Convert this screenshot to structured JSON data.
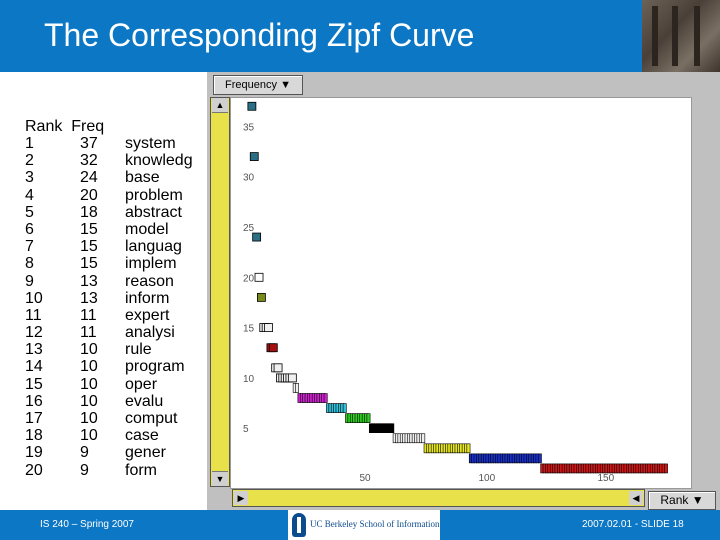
{
  "title": "The Corresponding Zipf Curve",
  "table": {
    "headers": [
      "Rank",
      "Freq"
    ],
    "rows": [
      {
        "rank": "1",
        "freq": "37",
        "term": "system"
      },
      {
        "rank": "2",
        "freq": "32",
        "term": "knowledg"
      },
      {
        "rank": "3",
        "freq": "24",
        "term": "base"
      },
      {
        "rank": "4",
        "freq": "20",
        "term": "problem"
      },
      {
        "rank": "5",
        "freq": "18",
        "term": "abstract"
      },
      {
        "rank": "6",
        "freq": "15",
        "term": "model"
      },
      {
        "rank": "7",
        "freq": "15",
        "term": "languag"
      },
      {
        "rank": "8",
        "freq": "15",
        "term": "implem"
      },
      {
        "rank": "9",
        "freq": "13",
        "term": "reason"
      },
      {
        "rank": "10",
        "freq": "13",
        "term": "inform"
      },
      {
        "rank": "11",
        "freq": "11",
        "term": "expert"
      },
      {
        "rank": "12",
        "freq": "11",
        "term": "analysi"
      },
      {
        "rank": "13",
        "freq": "10",
        "term": "rule"
      },
      {
        "rank": "14",
        "freq": "10",
        "term": "program"
      },
      {
        "rank": "15",
        "freq": "10",
        "term": "oper"
      },
      {
        "rank": "16",
        "freq": "10",
        "term": "evalu"
      },
      {
        "rank": "17",
        "freq": "10",
        "term": "comput"
      },
      {
        "rank": "18",
        "freq": "10",
        "term": "case"
      },
      {
        "rank": "19",
        "freq": "9",
        "term": "gener"
      },
      {
        "rank": "20",
        "freq": "9",
        "term": "form"
      }
    ]
  },
  "controls": {
    "y_axis_selector": "Frequency",
    "x_axis_selector": "Rank",
    "dropdown_glyph": "▼",
    "scroll_left_glyph": "◀",
    "scroll_right_glyph": "▶",
    "scroll_up_glyph": "▲",
    "scroll_down_glyph": "▼"
  },
  "chart_data": {
    "type": "scatter",
    "x_ticks": [
      "50",
      "100",
      "150"
    ],
    "y_ticks": [
      "5",
      "10",
      "15",
      "20",
      "25",
      "30",
      "35"
    ],
    "xlim": [
      0,
      180
    ],
    "ylim": [
      1,
      38
    ],
    "grid": false,
    "points": [
      {
        "x": 1,
        "y": 37
      },
      {
        "x": 2,
        "y": 32
      },
      {
        "x": 3,
        "y": 24
      },
      {
        "x": 4,
        "y": 20
      },
      {
        "x": 5,
        "y": 18
      },
      {
        "x": 6,
        "y": 15
      },
      {
        "x": 7,
        "y": 15
      },
      {
        "x": 8,
        "y": 15
      },
      {
        "x": 9,
        "y": 13
      },
      {
        "x": 10,
        "y": 13
      },
      {
        "x": 11,
        "y": 11
      },
      {
        "x": 12,
        "y": 11
      },
      {
        "x": 13,
        "y": 10
      },
      {
        "x": 14,
        "y": 10
      },
      {
        "x": 15,
        "y": 10
      },
      {
        "x": 16,
        "y": 10
      },
      {
        "x": 17,
        "y": 10
      },
      {
        "x": 18,
        "y": 10
      }
    ],
    "runs": [
      {
        "y": 9,
        "from": 19,
        "to": 20,
        "color": "#f0f0f0"
      },
      {
        "y": 8,
        "from": 21,
        "to": 32,
        "color": "#d020d0"
      },
      {
        "y": 7,
        "from": 33,
        "to": 40,
        "color": "#30c0d8"
      },
      {
        "y": 6,
        "from": 41,
        "to": 50,
        "color": "#30d020"
      },
      {
        "y": 5,
        "from": 51,
        "to": 60,
        "color": "#000000"
      },
      {
        "y": 4,
        "from": 61,
        "to": 73,
        "color": "#f0f0f0"
      },
      {
        "y": 3,
        "from": 74,
        "to": 92,
        "color": "#e8e820"
      },
      {
        "y": 2,
        "from": 93,
        "to": 122,
        "color": "#1830c8"
      },
      {
        "y": 1,
        "from": 123,
        "to": 175,
        "color": "#d01818"
      }
    ],
    "colors": {
      "top_points": "#2a6f86",
      "rank4": "#ffffff",
      "rank5": "#7a8a18",
      "rank6to8": "#f0f0f0",
      "rank9to10": "#a81010"
    }
  },
  "footer": {
    "left": "IS 240 – Spring 2007",
    "right": "2007.02.01 - SLIDE 18",
    "logo_text": "UC Berkeley School of Information"
  }
}
